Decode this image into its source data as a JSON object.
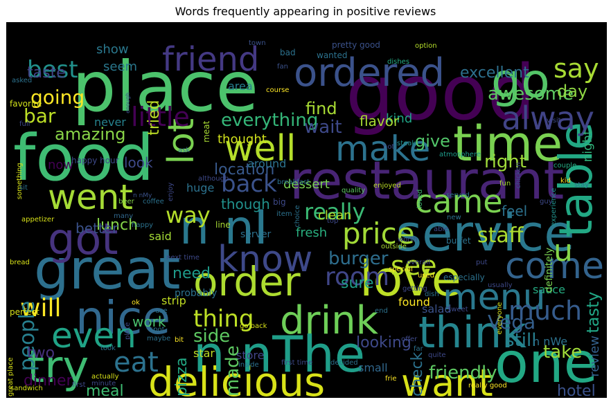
{
  "title": "Words frequently appearing in positive reviews",
  "background_color": "#000000",
  "colormap": "viridis",
  "words": [
    {
      "text": "place"
    },
    {
      "text": "good"
    },
    {
      "text": "food"
    },
    {
      "text": "restaurant"
    },
    {
      "text": "great"
    },
    {
      "text": "service"
    },
    {
      "text": "time"
    },
    {
      "text": "one"
    },
    {
      "text": "delicious"
    },
    {
      "text": "n nThe"
    },
    {
      "text": "love"
    },
    {
      "text": "order"
    },
    {
      "text": "nice"
    },
    {
      "text": "try"
    },
    {
      "text": "go"
    },
    {
      "text": "ordered"
    },
    {
      "text": "make"
    },
    {
      "text": "well"
    },
    {
      "text": "friend"
    },
    {
      "text": "got"
    },
    {
      "text": "know"
    },
    {
      "text": "went"
    },
    {
      "text": "came"
    },
    {
      "text": "n nI"
    },
    {
      "text": "think"
    },
    {
      "text": "want"
    },
    {
      "text": "drink"
    },
    {
      "text": "menu"
    },
    {
      "text": "come"
    },
    {
      "text": "even"
    },
    {
      "text": "table"
    },
    {
      "text": "lot"
    },
    {
      "text": "alway"
    },
    {
      "text": "price"
    },
    {
      "text": "eat"
    },
    {
      "text": "say"
    },
    {
      "text": "little"
    },
    {
      "text": "really"
    },
    {
      "text": "back"
    },
    {
      "text": "thing"
    },
    {
      "text": "best"
    },
    {
      "text": "will"
    },
    {
      "text": "see"
    },
    {
      "text": "u"
    },
    {
      "text": "much"
    },
    {
      "text": "room"
    },
    {
      "text": "way"
    },
    {
      "text": "people"
    },
    {
      "text": "everything"
    },
    {
      "text": "staff"
    },
    {
      "text": "still"
    },
    {
      "text": "take"
    },
    {
      "text": "friendly"
    },
    {
      "text": "side"
    },
    {
      "text": "made"
    },
    {
      "text": "pizza"
    },
    {
      "text": "Vega"
    },
    {
      "text": "burger"
    },
    {
      "text": "amazing"
    },
    {
      "text": "awesome"
    },
    {
      "text": "bar"
    },
    {
      "text": "excellent"
    },
    {
      "text": "going"
    },
    {
      "text": "taste"
    },
    {
      "text": "day"
    },
    {
      "text": "find"
    },
    {
      "text": "wait"
    },
    {
      "text": "give"
    },
    {
      "text": "right"
    },
    {
      "text": "tasty"
    },
    {
      "text": "dinner"
    },
    {
      "text": "lunch"
    },
    {
      "text": "two"
    },
    {
      "text": "meal"
    },
    {
      "text": "location"
    },
    {
      "text": "tried"
    },
    {
      "text": "sure"
    },
    {
      "text": "review"
    },
    {
      "text": "hotel"
    },
    {
      "text": "look"
    },
    {
      "text": "need"
    },
    {
      "text": "feel"
    },
    {
      "text": "check"
    },
    {
      "text": "looking"
    },
    {
      "text": "work"
    },
    {
      "text": "better"
    },
    {
      "text": "though"
    },
    {
      "text": "show"
    },
    {
      "text": "seem"
    },
    {
      "text": "night"
    },
    {
      "text": "kind"
    },
    {
      "text": "dessert"
    },
    {
      "text": "flavor"
    },
    {
      "text": "thought"
    },
    {
      "text": "clean"
    },
    {
      "text": "fresh"
    },
    {
      "text": "never"
    },
    {
      "text": "area"
    },
    {
      "text": "huge"
    },
    {
      "text": "around"
    },
    {
      "text": "now"
    },
    {
      "text": "said"
    },
    {
      "text": "found"
    },
    {
      "text": "salad"
    },
    {
      "text": "sauce"
    },
    {
      "text": "n nWe"
    },
    {
      "text": "definitely"
    },
    {
      "text": "small"
    },
    {
      "text": "store"
    },
    {
      "text": "star"
    },
    {
      "text": "strip"
    },
    {
      "text": "server"
    },
    {
      "text": "probably"
    },
    {
      "text": "favorite"
    },
    {
      "text": "pretty good"
    },
    {
      "text": "happy hour"
    },
    {
      "text": "wanted"
    },
    {
      "text": "bad"
    },
    {
      "text": "town"
    },
    {
      "text": "option"
    },
    {
      "text": "dishes"
    },
    {
      "text": "fan"
    },
    {
      "text": "course"
    },
    {
      "text": "asked"
    },
    {
      "text": "visit"
    },
    {
      "text": "meat"
    },
    {
      "text": "enough"
    },
    {
      "text": "full"
    },
    {
      "text": "ask"
    },
    {
      "text": "something"
    },
    {
      "text": "hot"
    },
    {
      "text": "steak"
    },
    {
      "text": "atmosphere"
    },
    {
      "text": "chicken"
    },
    {
      "text": "experience"
    },
    {
      "text": "sit"
    },
    {
      "text": "although"
    },
    {
      "text": "quality"
    },
    {
      "text": "enjoyed"
    },
    {
      "text": "loved"
    },
    {
      "text": "served"
    },
    {
      "text": "enjoy"
    },
    {
      "text": "couple"
    },
    {
      "text": "kid"
    },
    {
      "text": "stay"
    },
    {
      "text": "fun"
    },
    {
      "text": "guy"
    },
    {
      "text": "n nMy"
    },
    {
      "text": "breakfast"
    },
    {
      "text": "beer"
    },
    {
      "text": "coffee"
    },
    {
      "text": "many"
    },
    {
      "text": "big"
    },
    {
      "text": "choice"
    },
    {
      "text": "top"
    },
    {
      "text": "item"
    },
    {
      "text": "happy"
    },
    {
      "text": "line"
    },
    {
      "text": "new"
    },
    {
      "text": "appetizer"
    },
    {
      "text": "able"
    },
    {
      "text": "worth"
    },
    {
      "text": "outside"
    },
    {
      "text": "overall"
    },
    {
      "text": "buffet"
    },
    {
      "text": "put"
    },
    {
      "text": "bread"
    },
    {
      "text": "next time"
    },
    {
      "text": "special"
    },
    {
      "text": "used"
    },
    {
      "text": "especially"
    },
    {
      "text": "usually"
    },
    {
      "text": "everyone"
    },
    {
      "text": "ok"
    },
    {
      "text": "getting"
    },
    {
      "text": "dish"
    },
    {
      "text": "perfect"
    },
    {
      "text": "plate"
    },
    {
      "text": "use"
    },
    {
      "text": "end"
    },
    {
      "text": "sweet"
    },
    {
      "text": "spot"
    },
    {
      "text": "go back"
    },
    {
      "text": "maybe"
    },
    {
      "text": "took"
    },
    {
      "text": "bit"
    },
    {
      "text": "offer"
    },
    {
      "text": "far"
    },
    {
      "text": "quite"
    },
    {
      "text": "great place"
    },
    {
      "text": "inside"
    },
    {
      "text": "first time"
    },
    {
      "text": "decided"
    },
    {
      "text": "actually"
    },
    {
      "text": "minute"
    },
    {
      "text": "first"
    },
    {
      "text": "frie"
    },
    {
      "text": "really good"
    },
    {
      "text": "sandwich"
    }
  ]
}
